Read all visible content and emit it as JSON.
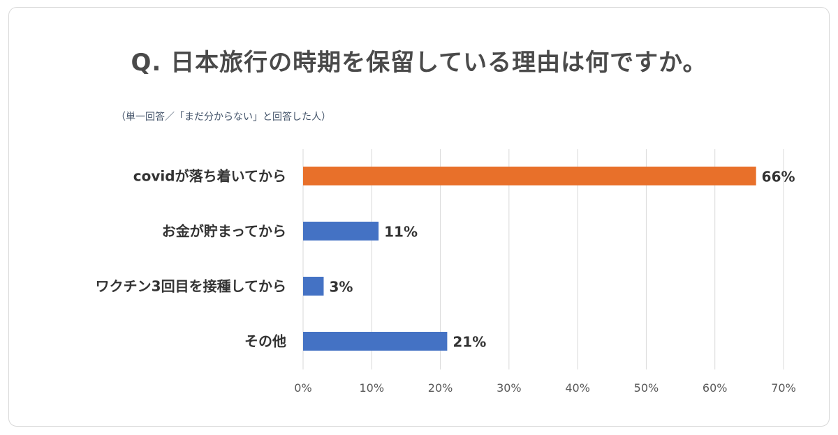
{
  "title": "Q. 日本旅行の時期を保留している理由は何ですか。",
  "subtitle": "（単一回答／「まだ分からない」と回答した人）",
  "colors": {
    "highlight": "#e8702a",
    "bar": "#4472c4",
    "grid": "#d9d9d9"
  },
  "chart_data": {
    "type": "bar",
    "orientation": "horizontal",
    "title": "Q. 日本旅行の時期を保留している理由は何ですか。",
    "subtitle": "（単一回答／「まだ分からない」と回答した人）",
    "categories": [
      "covidが落ち着いてから",
      "お金が貯まってから",
      "ワクチン3回目を接種してから",
      "その他"
    ],
    "values": [
      66,
      11,
      3,
      21
    ],
    "value_labels": [
      "66%",
      "11%",
      "3%",
      "21%"
    ],
    "highlight_index": 0,
    "xlim": [
      0,
      70
    ],
    "x_ticks": [
      0,
      10,
      20,
      30,
      40,
      50,
      60,
      70
    ],
    "x_tick_labels": [
      "0%",
      "10%",
      "20%",
      "30%",
      "40%",
      "50%",
      "60%",
      "70%"
    ],
    "grid": true,
    "legend": "none"
  }
}
